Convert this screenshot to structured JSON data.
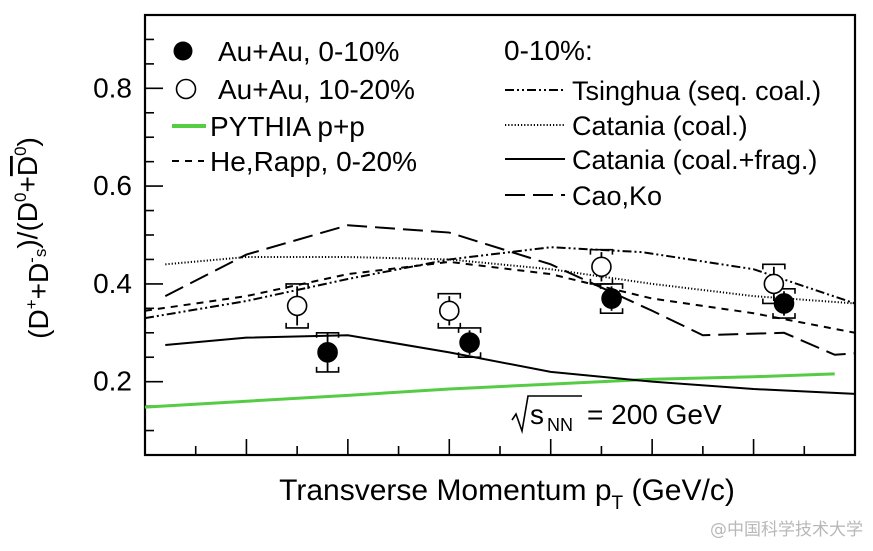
{
  "chart_data": {
    "type": "scatter",
    "xlabel_main": "Transverse Momentum p",
    "xlabel_sub": "T",
    "xlabel_unit": "(GeV/c)",
    "xlim": [
      0,
      7
    ],
    "ylim": [
      0.05,
      0.95
    ],
    "yticks": [
      "0.2",
      "0.4",
      "0.6",
      "0.8"
    ],
    "ytick_values": [
      0.2,
      0.4,
      0.6,
      0.8
    ],
    "xtick_minor": [
      0.5,
      1.0,
      1.5,
      2.0,
      2.5,
      3.0,
      3.5,
      4.0,
      4.5,
      5.0,
      5.5,
      6.0,
      6.5
    ],
    "annotation": {
      "text": "= 200 GeV",
      "sqrt_label": "s",
      "sqrt_sub": "NN"
    },
    "legend_left": [
      {
        "key": "auau010",
        "label": "Au+Au, 0-10%"
      },
      {
        "key": "auau1020",
        "label": "Au+Au, 10-20%"
      },
      {
        "key": "pythia",
        "label": "PYTHIA p+p"
      },
      {
        "key": "herapp",
        "label": "He,Rapp, 0-20%"
      }
    ],
    "legend_right_title": "0-10%:",
    "legend_right": [
      {
        "key": "tsinghua",
        "label": "Tsinghua (seq. coal.)"
      },
      {
        "key": "catania_c",
        "label": "Catania (coal.)"
      },
      {
        "key": "catania_cf",
        "label": "Catania (coal.+frag.)"
      },
      {
        "key": "caoko",
        "label": "Cao,Ko"
      }
    ],
    "points": [
      {
        "series": "auau010",
        "x": 1.8,
        "y": 0.26,
        "stat": 0.04,
        "sys": 0.04
      },
      {
        "series": "auau010",
        "x": 3.2,
        "y": 0.28,
        "stat": 0.025,
        "sys": 0.03
      },
      {
        "series": "auau010",
        "x": 4.6,
        "y": 0.37,
        "stat": 0.025,
        "sys": 0.03
      },
      {
        "series": "auau010",
        "x": 6.3,
        "y": 0.36,
        "stat": 0.025,
        "sys": 0.03
      },
      {
        "series": "auau1020",
        "x": 1.5,
        "y": 0.355,
        "stat": 0.04,
        "sys": 0.045
      },
      {
        "series": "auau1020",
        "x": 3.0,
        "y": 0.345,
        "stat": 0.03,
        "sys": 0.035
      },
      {
        "series": "auau1020",
        "x": 4.5,
        "y": 0.435,
        "stat": 0.03,
        "sys": 0.035
      },
      {
        "series": "auau1020",
        "x": 6.2,
        "y": 0.4,
        "stat": 0.035,
        "sys": 0.04
      }
    ],
    "curves": [
      {
        "series": "pythia",
        "color": "#55cc44",
        "dash": "",
        "x": [
          0,
          1,
          2,
          3,
          4,
          5,
          6,
          6.8
        ],
        "y": [
          0.148,
          0.16,
          0.172,
          0.185,
          0.195,
          0.205,
          0.21,
          0.216
        ]
      },
      {
        "series": "herapp",
        "color": "#000000",
        "dash": "7 6",
        "x": [
          0,
          1,
          2,
          3,
          4,
          5,
          6,
          7
        ],
        "y": [
          0.345,
          0.375,
          0.42,
          0.445,
          0.42,
          0.37,
          0.34,
          0.3
        ]
      },
      {
        "series": "tsinghua",
        "color": "#000000",
        "dash": "9 3 2 3 2 3",
        "x": [
          0,
          1,
          2,
          3,
          4,
          4.9,
          6,
          7
        ],
        "y": [
          0.33,
          0.365,
          0.41,
          0.45,
          0.475,
          0.465,
          0.43,
          0.36
        ]
      },
      {
        "series": "catania_c",
        "color": "#000000",
        "dash": "1.2 2",
        "x": [
          0.2,
          1,
          2,
          3,
          4,
          5,
          6,
          7
        ],
        "y": [
          0.44,
          0.455,
          0.455,
          0.45,
          0.43,
          0.4,
          0.375,
          0.36
        ]
      },
      {
        "series": "catania_cf",
        "color": "#000000",
        "dash": "",
        "x": [
          0.2,
          1,
          2,
          3,
          4,
          5,
          6,
          7
        ],
        "y": [
          0.275,
          0.29,
          0.295,
          0.26,
          0.22,
          0.2,
          0.185,
          0.175
        ]
      },
      {
        "series": "caoko",
        "color": "#000000",
        "dash": "20 8",
        "x": [
          0.2,
          1,
          2,
          3,
          4,
          5,
          5.5,
          6.3,
          6.8,
          7
        ],
        "y": [
          0.375,
          0.46,
          0.52,
          0.505,
          0.44,
          0.345,
          0.295,
          0.3,
          0.255,
          0.258
        ]
      }
    ]
  },
  "watermark": "@中国科学技术大学"
}
